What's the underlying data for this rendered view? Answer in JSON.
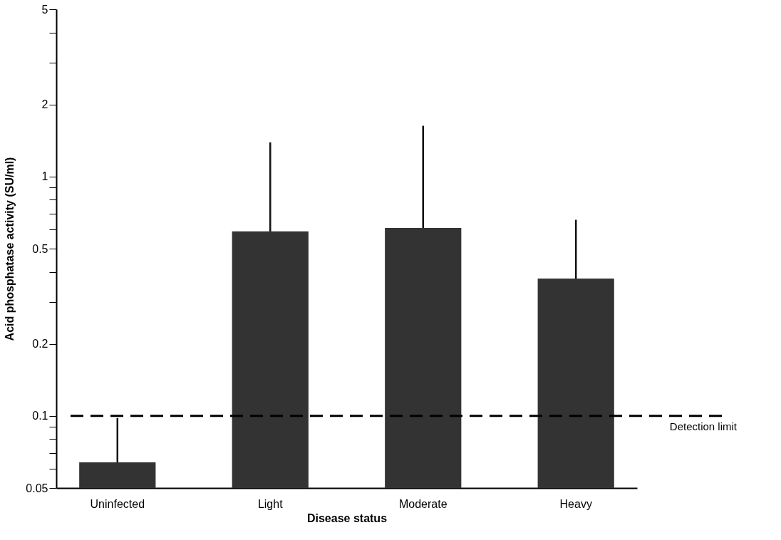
{
  "chart_data": {
    "type": "bar",
    "xlabel": "Disease status",
    "ylabel": "Acid phosphatase activity (SU/ml)",
    "categories": [
      "Uninfected",
      "Light",
      "Moderate",
      "Heavy"
    ],
    "values": [
      0.064,
      0.59,
      0.61,
      0.375
    ],
    "errors": [
      [
        0.064,
        0.098
      ],
      [
        0.59,
        1.39
      ],
      [
        0.61,
        1.63
      ],
      [
        0.375,
        0.66
      ]
    ],
    "color": "#333333",
    "log": true,
    "ylim": [
      0.05,
      5
    ],
    "yticks": [
      0.05,
      {
        "value": 0.06,
        "label": null
      },
      {
        "value": 0.07,
        "label": null
      },
      {
        "value": 0.08,
        "label": null
      },
      {
        "value": 0.09,
        "label": null
      },
      0.1,
      0.2,
      {
        "value": 0.3,
        "label": null
      },
      {
        "value": 0.4,
        "label": null
      },
      0.5,
      {
        "value": 0.6,
        "label": null
      },
      {
        "value": 0.7,
        "label": null
      },
      {
        "value": 0.8,
        "label": null
      },
      {
        "value": 0.9,
        "label": null
      },
      1,
      2,
      {
        "value": 3,
        "label": null
      },
      {
        "value": 4,
        "label": null
      },
      5
    ],
    "ref_lines": [
      {
        "axis": "y",
        "value": 0.1,
        "label": "Detection limit",
        "line_style": "dashed",
        "color": "#000000"
      }
    ],
    "grid": false
  }
}
